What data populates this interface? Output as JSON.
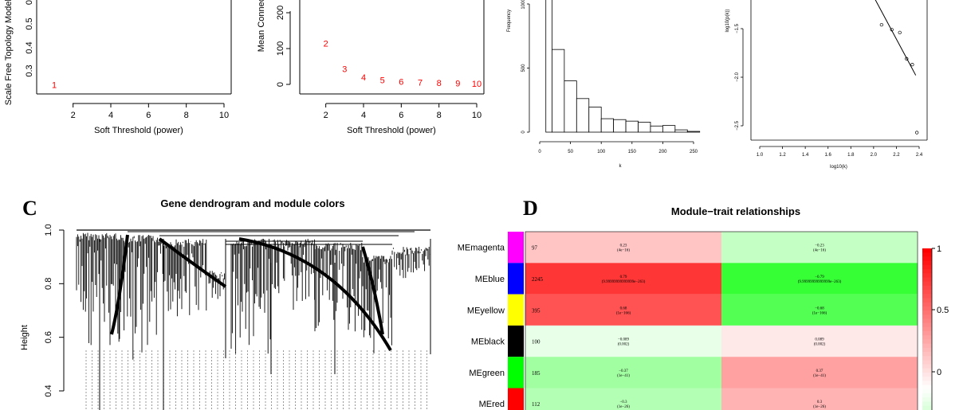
{
  "chart_data": [
    {
      "panel": "A-left",
      "type": "scatter",
      "xlabel": "Soft Threshold (power)",
      "ylabel": "Scale Free Topology Model Fit",
      "xlim": [
        1,
        10.5
      ],
      "ylim": [
        0.22,
        1.0
      ],
      "x_ticks": [
        2,
        4,
        6,
        8,
        10
      ],
      "y_ticks": [
        0.3,
        0.4,
        0.5,
        0
      ],
      "points": [
        {
          "x": 1,
          "y": 0.24,
          "label": "1"
        }
      ],
      "color": "#ff0000"
    },
    {
      "panel": "A-right",
      "type": "scatter",
      "xlabel": "Soft Threshold (power)",
      "ylabel": "Mean Connectivity",
      "xlim": [
        1,
        10.5
      ],
      "ylim": [
        -10,
        310
      ],
      "x_ticks": [
        2,
        4,
        6,
        8,
        10
      ],
      "y_ticks": [
        0,
        100,
        200
      ],
      "points": [
        {
          "x": 2,
          "y": 115,
          "label": "2"
        },
        {
          "x": 3,
          "y": 43,
          "label": "3"
        },
        {
          "x": 4,
          "y": 20,
          "label": "4"
        },
        {
          "x": 5,
          "y": 12,
          "label": "5"
        },
        {
          "x": 6,
          "y": 8,
          "label": "6"
        },
        {
          "x": 7,
          "y": 6,
          "label": "7"
        },
        {
          "x": 8,
          "y": 4,
          "label": "8"
        },
        {
          "x": 9,
          "y": 3,
          "label": "9"
        },
        {
          "x": 10,
          "y": 2,
          "label": "10"
        }
      ],
      "color": "#ff0000"
    },
    {
      "panel": "B-left",
      "type": "bar",
      "xlabel": "k",
      "ylabel": "Frequency",
      "xlim": [
        -5,
        255
      ],
      "ylim": [
        0,
        1300
      ],
      "x_ticks": [
        0,
        50,
        100,
        150,
        200,
        250
      ],
      "y_ticks": [
        0,
        500,
        1000
      ],
      "bins": [
        {
          "from": 10,
          "to": 20,
          "value": 1300
        },
        {
          "from": 20,
          "to": 40,
          "value": 645
        },
        {
          "from": 40,
          "to": 60,
          "value": 400
        },
        {
          "from": 60,
          "to": 80,
          "value": 262
        },
        {
          "from": 80,
          "to": 100,
          "value": 196
        },
        {
          "from": 100,
          "to": 120,
          "value": 105
        },
        {
          "from": 120,
          "to": 140,
          "value": 98
        },
        {
          "from": 140,
          "to": 160,
          "value": 86
        },
        {
          "from": 160,
          "to": 180,
          "value": 78
        },
        {
          "from": 180,
          "to": 200,
          "value": 48
        },
        {
          "from": 200,
          "to": 220,
          "value": 52
        },
        {
          "from": 220,
          "to": 240,
          "value": 18
        },
        {
          "from": 240,
          "to": 260,
          "value": 6
        }
      ]
    },
    {
      "panel": "B-right",
      "type": "scatter",
      "xlabel": "log10(k)",
      "ylabel": "log10(p(k))",
      "xlim": [
        0.93,
        2.47
      ],
      "ylim": [
        -2.68,
        -0.9
      ],
      "x_ticks": [
        1.0,
        1.2,
        1.4,
        1.6,
        1.8,
        2.0,
        2.2,
        2.4
      ],
      "y_ticks": [
        -2.5,
        -2.0,
        -1.5
      ],
      "points": [
        {
          "x": 2.07,
          "y": -1.46
        },
        {
          "x": 2.16,
          "y": -1.51
        },
        {
          "x": 2.23,
          "y": -1.54
        },
        {
          "x": 2.29,
          "y": -1.81
        },
        {
          "x": 2.34,
          "y": -1.87
        },
        {
          "x": 2.38,
          "y": -2.57
        }
      ],
      "fit_line": {
        "x1": 1.9,
        "y1": -0.95,
        "x2": 2.37,
        "y2": -1.98
      }
    },
    {
      "panel": "C",
      "type": "dendrogram",
      "title": "Gene dendrogram and module colors",
      "ylabel": "Height",
      "ylim": [
        0.32,
        1.0
      ],
      "y_ticks": [
        0.4,
        0.6,
        0.8,
        1.0
      ]
    },
    {
      "panel": "D",
      "type": "heatmap",
      "title": "Module−trait relationships",
      "rows": [
        {
          "name": "MEmagenta",
          "color": "#ff00ff",
          "count": "97",
          "cells": [
            {
              "value": 0.23,
              "label": "0.23",
              "p": "(4e−16)"
            },
            {
              "value": -0.23,
              "label": "−0.23",
              "p": "(4e−16)"
            }
          ]
        },
        {
          "name": "MEblue",
          "color": "#0000ff",
          "count": "2245",
          "cells": [
            {
              "value": 0.79,
              "label": "0.79",
              "p": "(9.99999999999999e−263)"
            },
            {
              "value": -0.79,
              "label": "−0.79",
              "p": "(9.99999999999999e−263)"
            }
          ]
        },
        {
          "name": "MEyellow",
          "color": "#ffff00",
          "count": "395",
          "cells": [
            {
              "value": 0.68,
              "label": "0.68",
              "p": "(1e−166)"
            },
            {
              "value": -0.68,
              "label": "−0.68",
              "p": "(1e−166)"
            }
          ]
        },
        {
          "name": "MEblack",
          "color": "#000000",
          "count": "100",
          "cells": [
            {
              "value": -0.089,
              "label": "−0.089",
              "p": "(0.002)"
            },
            {
              "value": 0.089,
              "label": "0.089",
              "p": "(0.002)"
            }
          ]
        },
        {
          "name": "MEgreen",
          "color": "#00ff00",
          "count": "185",
          "cells": [
            {
              "value": -0.37,
              "label": "−0.37",
              "p": "(1e−41)"
            },
            {
              "value": 0.37,
              "label": "0.37",
              "p": "(1e−41)"
            }
          ]
        },
        {
          "name": "MEred",
          "color": "#ff0000",
          "count": "112",
          "cells": [
            {
              "value": -0.3,
              "label": "−0.3",
              "p": "(1e−26)"
            },
            {
              "value": 0.3,
              "label": "0.3",
              "p": "(1e−26)"
            }
          ]
        }
      ],
      "colorbar": {
        "ticks": [
          "1",
          "0.5",
          "0"
        ],
        "values": [
          1,
          0.5,
          0
        ]
      }
    }
  ],
  "panel_labels": {
    "c": "C",
    "d": "D"
  },
  "colors": {
    "red": "#ff0000",
    "pos": "#ff0000",
    "neg": "#00ff00"
  }
}
